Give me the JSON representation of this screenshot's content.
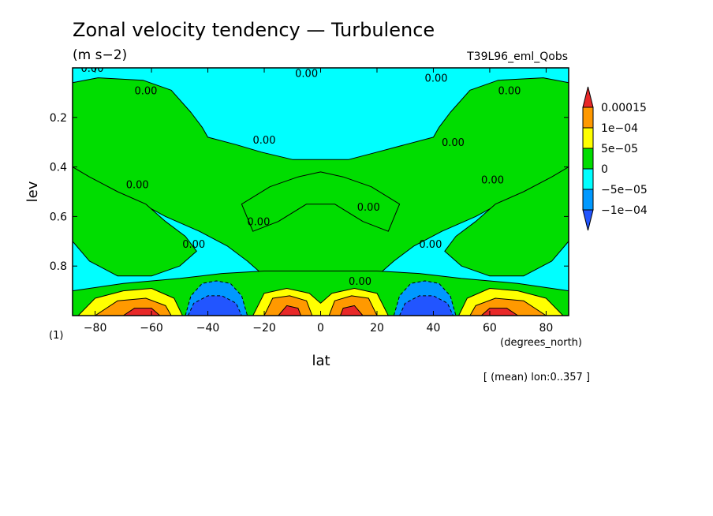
{
  "chart_data": {
    "type": "heatmap",
    "title": "Zonal velocity tendency — Turbulence",
    "units": "(m s−2)",
    "run": "T39L96_eml_Qobs",
    "xlabel": "lat",
    "x_units": "(degrees_north)",
    "ylabel": "lev",
    "y_units": "(1)",
    "footer": "[ (mean) lon:0..357 ]",
    "xlim": [
      -88,
      88
    ],
    "ylim": [
      1.0,
      0.0
    ],
    "x_ticks": [
      -80,
      -60,
      -40,
      -20,
      0,
      20,
      40,
      60,
      80
    ],
    "x_tick_labels": [
      "−80",
      "−60",
      "−40",
      "−20",
      "0",
      "20",
      "40",
      "60",
      "80"
    ],
    "y_ticks": [
      0.2,
      0.4,
      0.6,
      0.8
    ],
    "y_tick_labels": [
      "0.2",
      "0.4",
      "0.6",
      "0.8"
    ],
    "colorbar": {
      "labels": [
        "0.00015",
        "1e−04",
        "5e−05",
        "0",
        "−5e−05",
        "−1e−04"
      ],
      "colors": [
        "#e82828",
        "#ff9900",
        "#ffff00",
        "#00dd00",
        "#00ffff",
        "#0099ff",
        "#2255ff"
      ]
    },
    "contour_labels": [
      {
        "text": "0.00",
        "x": -81,
        "y": 0.0
      },
      {
        "text": "0.00",
        "x": -5,
        "y": 0.02
      },
      {
        "text": "0.00",
        "x": -62,
        "y": 0.09
      },
      {
        "text": "0.00",
        "x": 41,
        "y": 0.04
      },
      {
        "text": "0.00",
        "x": 67,
        "y": 0.09
      },
      {
        "text": "0.00",
        "x": -20,
        "y": 0.29
      },
      {
        "text": "0.00",
        "x": 47,
        "y": 0.3
      },
      {
        "text": "0.00",
        "x": -65,
        "y": 0.47
      },
      {
        "text": "0.00",
        "x": 61,
        "y": 0.45
      },
      {
        "text": "0.00",
        "x": 17,
        "y": 0.56
      },
      {
        "text": "0.00",
        "x": -22,
        "y": 0.62
      },
      {
        "text": "0.00",
        "x": -45,
        "y": 0.71
      },
      {
        "text": "0.00",
        "x": 39,
        "y": 0.71
      },
      {
        "text": "0.00",
        "x": 14,
        "y": 0.86
      }
    ],
    "regions": [
      {
        "value": 0,
        "color": "#00dd00",
        "points": [
          [
            -88,
            0.06
          ],
          [
            -79,
            0.04
          ],
          [
            -63,
            0.05
          ],
          [
            -53,
            0.09
          ],
          [
            -46,
            0.18
          ],
          [
            -42,
            0.24
          ],
          [
            -40,
            0.28
          ],
          [
            -30,
            0.31
          ],
          [
            -21,
            0.34
          ],
          [
            -10,
            0.37
          ],
          [
            0,
            0.37
          ],
          [
            10,
            0.37
          ],
          [
            20,
            0.34
          ],
          [
            30,
            0.31
          ],
          [
            40,
            0.28
          ],
          [
            42,
            0.24
          ],
          [
            46,
            0.18
          ],
          [
            53,
            0.09
          ],
          [
            63,
            0.05
          ],
          [
            79,
            0.04
          ],
          [
            88,
            0.06
          ],
          [
            88,
            0.44
          ],
          [
            82,
            0.51
          ],
          [
            68,
            0.52
          ],
          [
            55,
            0.6
          ],
          [
            43,
            0.66
          ],
          [
            33,
            0.72
          ],
          [
            26,
            0.78
          ],
          [
            18,
            0.86
          ],
          [
            10,
            0.91
          ],
          [
            0,
            0.93
          ],
          [
            -10,
            0.91
          ],
          [
            -18,
            0.86
          ],
          [
            -26,
            0.78
          ],
          [
            -33,
            0.72
          ],
          [
            -43,
            0.66
          ],
          [
            -55,
            0.6
          ],
          [
            -68,
            0.52
          ],
          [
            -82,
            0.51
          ],
          [
            -88,
            0.44
          ]
        ]
      },
      {
        "value": 0,
        "color": "#00dd00",
        "points": [
          [
            -88,
            0.4
          ],
          [
            -82,
            0.44
          ],
          [
            -72,
            0.5
          ],
          [
            -62,
            0.55
          ],
          [
            -55,
            0.62
          ],
          [
            -48,
            0.68
          ],
          [
            -44,
            0.74
          ],
          [
            -50,
            0.8
          ],
          [
            -60,
            0.84
          ],
          [
            -72,
            0.84
          ],
          [
            -82,
            0.78
          ],
          [
            -88,
            0.7
          ]
        ]
      },
      {
        "value": 0,
        "color": "#00dd00",
        "points": [
          [
            88,
            0.4
          ],
          [
            82,
            0.44
          ],
          [
            72,
            0.5
          ],
          [
            62,
            0.55
          ],
          [
            55,
            0.62
          ],
          [
            48,
            0.68
          ],
          [
            44,
            0.74
          ],
          [
            50,
            0.8
          ],
          [
            60,
            0.84
          ],
          [
            72,
            0.84
          ],
          [
            82,
            0.78
          ],
          [
            88,
            0.7
          ]
        ]
      },
      {
        "value": 0,
        "color": "#00dd00",
        "points": [
          [
            -88,
            0.9
          ],
          [
            -70,
            0.87
          ],
          [
            -50,
            0.85
          ],
          [
            -35,
            0.83
          ],
          [
            -20,
            0.82
          ],
          [
            -5,
            0.82
          ],
          [
            5,
            0.82
          ],
          [
            20,
            0.82
          ],
          [
            35,
            0.83
          ],
          [
            50,
            0.85
          ],
          [
            70,
            0.87
          ],
          [
            88,
            0.9
          ],
          [
            88,
            1.0
          ],
          [
            -88,
            1.0
          ]
        ]
      },
      {
        "value": 0,
        "color": "#00dd00",
        "points": [
          [
            -28,
            0.55
          ],
          [
            -18,
            0.48
          ],
          [
            -8,
            0.44
          ],
          [
            0,
            0.42
          ],
          [
            8,
            0.44
          ],
          [
            18,
            0.48
          ],
          [
            28,
            0.55
          ],
          [
            24,
            0.66
          ],
          [
            15,
            0.62
          ],
          [
            5,
            0.55
          ],
          [
            -5,
            0.55
          ],
          [
            -15,
            0.62
          ],
          [
            -24,
            0.66
          ]
        ]
      },
      {
        "value": -0.0001,
        "color": "#0099ff",
        "points": [
          [
            -48,
            1.0
          ],
          [
            -46,
            0.92
          ],
          [
            -42,
            0.87
          ],
          [
            -37,
            0.86
          ],
          [
            -32,
            0.87
          ],
          [
            -28,
            0.92
          ],
          [
            -26,
            1.0
          ]
        ]
      },
      {
        "value": -0.0001,
        "color": "#0099ff",
        "points": [
          [
            26,
            1.0
          ],
          [
            28,
            0.92
          ],
          [
            32,
            0.87
          ],
          [
            37,
            0.86
          ],
          [
            42,
            0.87
          ],
          [
            46,
            0.92
          ],
          [
            48,
            1.0
          ]
        ]
      },
      {
        "value": -0.00013,
        "color": "#2255ff",
        "points": [
          [
            -47,
            1.0
          ],
          [
            -45,
            0.95
          ],
          [
            -40,
            0.92
          ],
          [
            -35,
            0.92
          ],
          [
            -30,
            0.95
          ],
          [
            -28,
            1.0
          ]
        ]
      },
      {
        "value": -0.00013,
        "color": "#2255ff",
        "points": [
          [
            28,
            1.0
          ],
          [
            30,
            0.95
          ],
          [
            35,
            0.92
          ],
          [
            40,
            0.92
          ],
          [
            45,
            0.95
          ],
          [
            47,
            1.0
          ]
        ]
      },
      {
        "value": 5e-05,
        "color": "#ffff00",
        "points": [
          [
            -86,
            1.0
          ],
          [
            -80,
            0.93
          ],
          [
            -70,
            0.9
          ],
          [
            -60,
            0.89
          ],
          [
            -52,
            0.93
          ],
          [
            -49,
            1.0
          ]
        ]
      },
      {
        "value": 5e-05,
        "color": "#ffff00",
        "points": [
          [
            49,
            1.0
          ],
          [
            52,
            0.93
          ],
          [
            60,
            0.89
          ],
          [
            70,
            0.9
          ],
          [
            80,
            0.93
          ],
          [
            86,
            1.0
          ]
        ]
      },
      {
        "value": 5e-05,
        "color": "#ffff00",
        "points": [
          [
            -24,
            1.0
          ],
          [
            -20,
            0.91
          ],
          [
            -12,
            0.89
          ],
          [
            -4,
            0.91
          ],
          [
            0,
            0.95
          ],
          [
            4,
            0.91
          ],
          [
            12,
            0.89
          ],
          [
            20,
            0.91
          ],
          [
            24,
            1.0
          ]
        ]
      },
      {
        "value": 0.0001,
        "color": "#ff9900",
        "points": [
          [
            -80,
            1.0
          ],
          [
            -72,
            0.94
          ],
          [
            -62,
            0.93
          ],
          [
            -55,
            0.96
          ],
          [
            -53,
            1.0
          ]
        ]
      },
      {
        "value": 0.0001,
        "color": "#ff9900",
        "points": [
          [
            53,
            1.0
          ],
          [
            55,
            0.96
          ],
          [
            62,
            0.93
          ],
          [
            72,
            0.94
          ],
          [
            80,
            1.0
          ]
        ]
      },
      {
        "value": 0.0001,
        "color": "#ff9900",
        "points": [
          [
            -20,
            1.0
          ],
          [
            -17,
            0.93
          ],
          [
            -11,
            0.92
          ],
          [
            -5,
            0.94
          ],
          [
            -3,
            1.0
          ]
        ]
      },
      {
        "value": 0.0001,
        "color": "#ff9900",
        "points": [
          [
            3,
            1.0
          ],
          [
            5,
            0.94
          ],
          [
            11,
            0.92
          ],
          [
            17,
            0.93
          ],
          [
            20,
            1.0
          ]
        ]
      },
      {
        "value": 0.00015,
        "color": "#e82828",
        "points": [
          [
            -70,
            1.0
          ],
          [
            -66,
            0.97
          ],
          [
            -60,
            0.97
          ],
          [
            -57,
            1.0
          ]
        ]
      },
      {
        "value": 0.00015,
        "color": "#e82828",
        "points": [
          [
            57,
            1.0
          ],
          [
            60,
            0.97
          ],
          [
            66,
            0.97
          ],
          [
            70,
            1.0
          ]
        ]
      },
      {
        "value": 0.00015,
        "color": "#e82828",
        "points": [
          [
            -15,
            1.0
          ],
          [
            -12,
            0.96
          ],
          [
            -8,
            0.97
          ],
          [
            -7,
            1.0
          ]
        ]
      },
      {
        "value": 0.00015,
        "color": "#e82828",
        "points": [
          [
            7,
            1.0
          ],
          [
            8,
            0.97
          ],
          [
            12,
            0.96
          ],
          [
            15,
            1.0
          ]
        ]
      }
    ]
  }
}
